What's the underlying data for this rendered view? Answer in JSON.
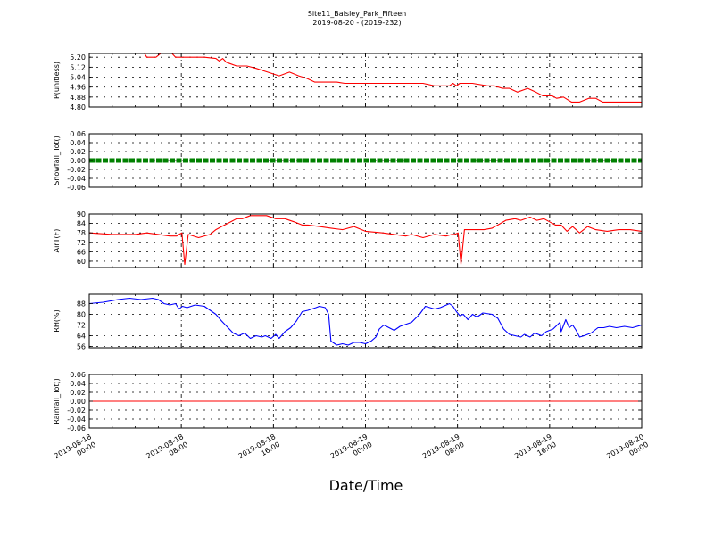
{
  "figure": {
    "title": "Site11_Baisley_Park_Fifteen",
    "subtitle": "2019-08-20 - (2019-232)",
    "xlabel": "Date/Time",
    "xticks": [
      [
        "2019-08-18",
        "00:00"
      ],
      [
        "2019-08-18",
        "08:00"
      ],
      [
        "2019-08-18",
        "16:00"
      ],
      [
        "2019-08-19",
        "00:00"
      ],
      [
        "2019-08-19",
        "08:00"
      ],
      [
        "2019-08-19",
        "16:00"
      ],
      [
        "2019-08-20",
        "00:00"
      ]
    ]
  },
  "chart_data": [
    {
      "type": "line",
      "ylabel": "P(unitless)",
      "color": "#ff0000",
      "ylim": [
        4.8,
        5.23
      ],
      "yticks": [
        "5.20",
        "5.12",
        "5.04",
        "4.96",
        "4.88",
        "4.80"
      ],
      "ytick_values": [
        5.2,
        5.12,
        5.04,
        4.96,
        4.88,
        4.8
      ],
      "x_hours": [
        0,
        2,
        4.8,
        5,
        5.8,
        6.2,
        7.2,
        7.5,
        8,
        8.5,
        10,
        11,
        11.3,
        11.6,
        11.9,
        12.2,
        12.8,
        13.7,
        14.5,
        15.5,
        16.5,
        17.4,
        18.2,
        18.9,
        19.6,
        20.3,
        21.5,
        22.2,
        23,
        23.6,
        24.5,
        25.6,
        26.5,
        28,
        29,
        30,
        31.3,
        31.6,
        31.9,
        32.2,
        32.6,
        33.3,
        34.6,
        35.2,
        35.9,
        36.5,
        37.2,
        38.1,
        38.8,
        39.4,
        40.2,
        40.6,
        41.2,
        41.9,
        42.2,
        42.6,
        43.4,
        44,
        44.6,
        45,
        45.6,
        46.3,
        47,
        48
      ],
      "values": [
        5.24,
        5.24,
        5.23,
        5.2,
        5.2,
        5.23,
        5.23,
        5.2,
        5.2,
        5.2,
        5.2,
        5.19,
        5.17,
        5.19,
        5.16,
        5.15,
        5.13,
        5.13,
        5.11,
        5.08,
        5.05,
        5.08,
        5.05,
        5.03,
        5.0,
        5.0,
        5.0,
        4.99,
        4.99,
        4.99,
        4.99,
        4.99,
        4.99,
        4.99,
        4.99,
        4.97,
        4.97,
        4.99,
        4.97,
        4.99,
        4.99,
        4.99,
        4.97,
        4.97,
        4.95,
        4.95,
        4.92,
        4.95,
        4.92,
        4.89,
        4.89,
        4.87,
        4.88,
        4.84,
        4.84,
        4.84,
        4.87,
        4.87,
        4.84,
        4.84,
        4.84,
        4.84,
        4.84,
        4.84
      ]
    },
    {
      "type": "scatter",
      "ylabel": "Snowfall_Tot()",
      "color": "#008000",
      "ylim": [
        -0.06,
        0.06
      ],
      "yticks": [
        "0.06",
        "0.04",
        "0.02",
        "0.00",
        "-0.02",
        "-0.04",
        "-0.06"
      ],
      "ytick_values": [
        0.06,
        0.04,
        0.02,
        0.0,
        -0.02,
        -0.04,
        -0.06
      ],
      "x_hours": [
        0,
        48
      ],
      "values": [
        0.0,
        0.0
      ]
    },
    {
      "type": "line",
      "ylabel": "AirT(F)",
      "color": "#ff0000",
      "ylim": [
        56,
        90
      ],
      "yticks": [
        "90",
        "84",
        "78",
        "72",
        "66",
        "60"
      ],
      "ytick_values": [
        90,
        84,
        78,
        72,
        66,
        60
      ],
      "x_hours": [
        0,
        2,
        3,
        4,
        5,
        6,
        7,
        7.6,
        7.8,
        8.05,
        8.3,
        8.6,
        9.5,
        10.5,
        11,
        11.5,
        12.3,
        12.8,
        13.3,
        14,
        14.7,
        15.4,
        16.2,
        17,
        17.8,
        18.5,
        19,
        20,
        21,
        22,
        23,
        24,
        25.5,
        26.5,
        27.5,
        28,
        29,
        30,
        31,
        31.5,
        31.75,
        32.05,
        32.3,
        32.6,
        33.5,
        34.3,
        35,
        35.5,
        36.2,
        37,
        37.5,
        38.3,
        38.9,
        39.5,
        40,
        40.5,
        41,
        41.5,
        42,
        42.6,
        43.3,
        44,
        45,
        46,
        47,
        48
      ],
      "values": [
        78,
        77,
        77,
        77,
        78,
        77,
        76,
        76,
        77,
        78,
        58,
        77,
        75,
        77,
        80,
        82,
        85,
        87,
        87,
        89,
        89,
        89,
        87,
        87,
        85,
        83,
        83,
        82,
        81,
        80,
        82,
        79,
        78,
        77,
        76,
        77,
        75,
        77,
        76,
        77,
        77,
        78,
        58,
        80,
        80,
        80,
        81,
        83,
        86,
        87,
        86,
        88,
        86,
        87,
        85,
        83,
        83,
        79,
        82,
        78,
        82,
        80,
        79,
        80,
        80,
        79
      ]
    },
    {
      "type": "line",
      "ylabel": "RH(%)",
      "color": "#0000ff",
      "ylim": [
        55,
        95
      ],
      "yticks": [
        "88",
        "80",
        "72",
        "64",
        "56"
      ],
      "ytick_values": [
        88,
        80,
        72,
        64,
        56
      ],
      "x_hours": [
        0,
        1.2,
        2.5,
        3.5,
        4.5,
        5.5,
        6,
        6.5,
        7,
        7.5,
        7.8,
        8.1,
        8.5,
        9.2,
        10,
        11,
        11.5,
        12.5,
        13,
        13.5,
        14,
        14.5,
        15,
        15.3,
        15.8,
        16.2,
        16.5,
        17,
        17.5,
        18,
        18.5,
        19,
        19.7,
        20,
        20.5,
        20.8,
        21,
        21.5,
        22,
        22.5,
        23,
        23.5,
        24,
        24.5,
        24.9,
        25.2,
        25.6,
        26.5,
        27,
        28,
        28.7,
        29.2,
        30,
        30.5,
        31.3,
        31.6,
        31.9,
        32.2,
        32.5,
        32.9,
        33.3,
        33.7,
        34.2,
        35,
        35.5,
        36,
        36.5,
        37,
        37.5,
        37.8,
        38.3,
        38.7,
        39.3,
        39.7,
        40.3,
        40.9,
        41,
        41.4,
        41.7,
        42,
        42.3,
        42.6,
        43,
        43.6,
        44.2,
        44.7,
        45.2,
        45.8,
        46.5,
        47.2,
        48
      ],
      "values": [
        88,
        89,
        91,
        92,
        91,
        92,
        91,
        88,
        87,
        88,
        84,
        86,
        85,
        87,
        86,
        80,
        75,
        66,
        64,
        66,
        62,
        64,
        63,
        64,
        62,
        65,
        62,
        67,
        70,
        75,
        82,
        83,
        85,
        86,
        85,
        80,
        60,
        57,
        58,
        57,
        59,
        59,
        58,
        60,
        63,
        69,
        72,
        68,
        71,
        74,
        80,
        86,
        84,
        85,
        88,
        86,
        82,
        79,
        80,
        76,
        80,
        78,
        81,
        80,
        77,
        69,
        65,
        64,
        63,
        65,
        63,
        66,
        64,
        67,
        69,
        74,
        67,
        76,
        70,
        72,
        68,
        63,
        64,
        66,
        70,
        70,
        71,
        70,
        71,
        70,
        72
      ]
    },
    {
      "type": "line",
      "ylabel": "Rainfall_Tot()",
      "color": "#ff0000",
      "ylim": [
        -0.06,
        0.06
      ],
      "yticks": [
        "0.06",
        "0.04",
        "0.02",
        "0.00",
        "-0.02",
        "-0.04",
        "-0.06"
      ],
      "ytick_values": [
        0.06,
        0.04,
        0.02,
        0.0,
        -0.02,
        -0.04,
        -0.06
      ],
      "x_hours": [
        0,
        48
      ],
      "values": [
        0.0,
        0.0
      ]
    }
  ]
}
